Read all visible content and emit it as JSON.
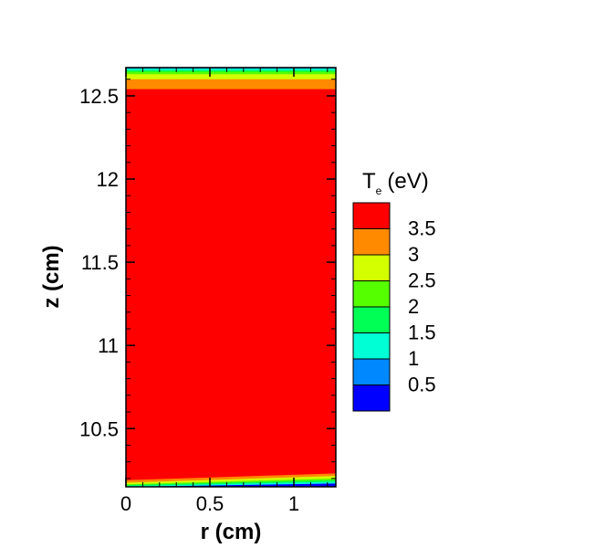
{
  "chart_data": {
    "type": "heatmap",
    "xlabel": "r (cm)",
    "ylabel": "z (cm)",
    "xlim": [
      0,
      1.25
    ],
    "ylim": [
      10.15,
      12.67
    ],
    "x_ticks": [
      {
        "value": 0,
        "label": "0"
      },
      {
        "value": 0.5,
        "label": "0.5"
      },
      {
        "value": 1,
        "label": "1"
      }
    ],
    "y_ticks": [
      {
        "value": 10.5,
        "label": "10.5"
      },
      {
        "value": 11,
        "label": "11"
      },
      {
        "value": 11.5,
        "label": "11.5"
      },
      {
        "value": 12,
        "label": "12"
      },
      {
        "value": 12.5,
        "label": "12.5"
      }
    ],
    "legend": {
      "title_main": "T",
      "title_sub": "e",
      "title_unit": "(eV)",
      "levels": [
        {
          "value": 3.5,
          "label": "3.5",
          "color": "#ff0000"
        },
        {
          "value": 3,
          "label": "3",
          "color": "#ff8a00"
        },
        {
          "value": 2.5,
          "label": "2.5",
          "color": "#d4ff00"
        },
        {
          "value": 2,
          "label": "2",
          "color": "#55ff00"
        },
        {
          "value": 1.5,
          "label": "1.5",
          "color": "#00ff55"
        },
        {
          "value": 1,
          "label": "1",
          "color": "#00ffd4"
        },
        {
          "value": 0.5,
          "label": "0.5",
          "color": "#0088ff"
        },
        {
          "value": 0,
          "label": "",
          "color": "#0000ff"
        }
      ]
    },
    "contour_bands": [
      {
        "level": 3.5,
        "color": "#ff0000",
        "bottom": [
          10.19,
          10.23
        ],
        "top": [
          12.54,
          12.54
        ]
      },
      {
        "level": 3,
        "color": "#ff8a00",
        "bottom": [
          10.175,
          10.215
        ],
        "top": [
          12.6,
          12.6
        ]
      },
      {
        "level": 2.5,
        "color": "#d4ff00",
        "bottom": [
          10.165,
          10.2
        ],
        "top": [
          12.63,
          12.63
        ]
      },
      {
        "level": 2,
        "color": "#55ff00",
        "bottom": [
          10.16,
          10.19
        ],
        "top": [
          12.645,
          12.645
        ]
      },
      {
        "level": 1.5,
        "color": "#00ff55",
        "bottom": [
          10.155,
          10.18
        ],
        "top": [
          12.655,
          12.655
        ]
      },
      {
        "level": 1,
        "color": "#00ffd4",
        "bottom": [
          10.15,
          10.17
        ],
        "top": [
          12.665,
          12.665
        ]
      }
    ]
  }
}
